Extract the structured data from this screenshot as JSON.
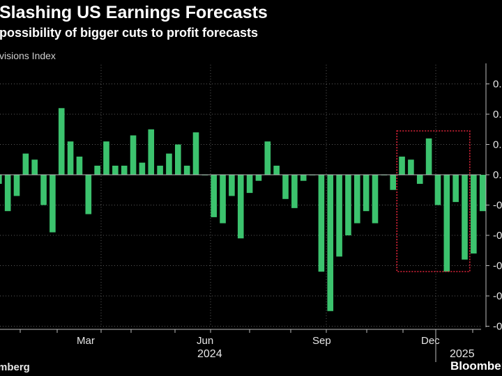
{
  "header": {
    "title": "Slashing US Earnings Forecasts",
    "subtitle": "possibility of bigger cuts to profit forecasts"
  },
  "chart_data": {
    "type": "bar",
    "title": "Slashing US Earnings Forecasts",
    "subtitle": "possibility of bigger cuts to profit forecasts",
    "ylabel": "visions Index",
    "xlabel": "",
    "ylim": [
      -0.5,
      0.35
    ],
    "grid": true,
    "bar_color": "#3cc36e",
    "highlight_color": "#e0243a",
    "highlight_range": [
      45,
      52
    ],
    "x_tick_labels": [
      "Mar",
      "Jun",
      "Sep",
      "Dec"
    ],
    "year_labels": [
      "2024",
      "2025"
    ],
    "y_tick_labels": [
      "0.",
      "0.",
      "0.",
      "0.",
      "-0",
      "-0",
      "-0",
      "-0",
      "-0"
    ],
    "values": [
      -0.03,
      -0.12,
      -0.07,
      0.07,
      0.05,
      -0.1,
      -0.19,
      0.22,
      0.11,
      0.06,
      -0.13,
      0.03,
      0.11,
      0.03,
      0.03,
      0.13,
      0.04,
      0.15,
      0.03,
      0.07,
      0.1,
      0.03,
      0.14,
      0.0,
      -0.14,
      -0.16,
      -0.07,
      -0.21,
      -0.06,
      -0.02,
      0.11,
      0.03,
      -0.08,
      -0.11,
      -0.02,
      0.0,
      -0.32,
      -0.45,
      -0.27,
      -0.2,
      -0.16,
      -0.12,
      -0.16,
      0.0,
      -0.05,
      0.06,
      0.05,
      -0.03,
      0.12,
      -0.1,
      -0.32,
      -0.09,
      -0.28,
      -0.26,
      -0.12
    ]
  },
  "footer": {
    "source": "mberg",
    "logo": "Bloomberg"
  }
}
